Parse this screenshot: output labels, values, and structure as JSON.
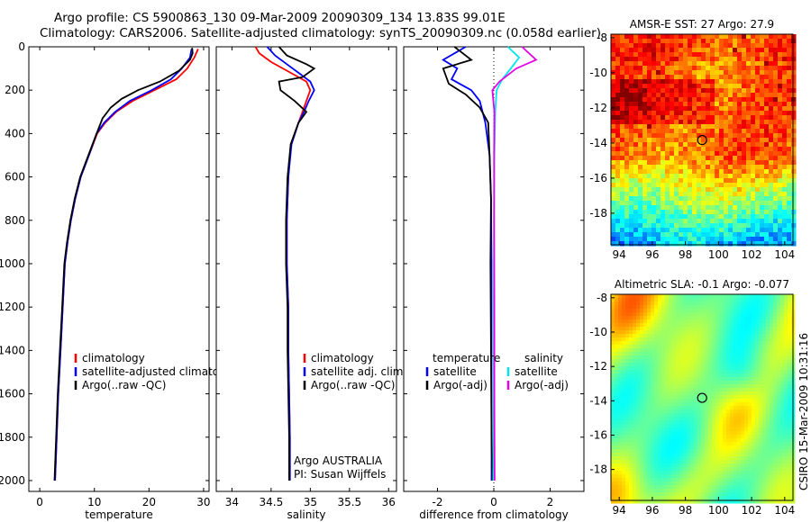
{
  "header": {
    "line1": "Argo profile: CS 5900863_130 09-Mar-2009 20090309_134 13.83S 99.01E",
    "line2": "Climatology: CARS2006. Satellite-adjusted climatology: synTS_20090309.nc (0.058d earlier)"
  },
  "footer": {
    "credit": "CSIRO 15-Mar-2009 10:31:16"
  },
  "colors": {
    "climatology": "#ff0000",
    "satellite": "#0000ff",
    "argo": "#000000",
    "satellite_diff_sal": "#00e5ee",
    "argo_diff_sal": "#e600e6"
  },
  "chart_data": [
    {
      "id": "temperature",
      "type": "line",
      "xlabel": "temperature",
      "ylabel": "",
      "xlim": [
        -2,
        31
      ],
      "ylim": [
        2050,
        0
      ],
      "xticks": [
        0,
        10,
        20,
        30
      ],
      "yticks": [
        0,
        200,
        400,
        600,
        800,
        1000,
        1200,
        1400,
        1600,
        1800,
        2000
      ],
      "legend": {
        "position": "lower-right",
        "entries": [
          "climatology",
          "satellite-adjusted climatology",
          "Argo(..raw -QC)"
        ]
      },
      "series": [
        {
          "name": "climatology",
          "color": "#ff0000",
          "points": [
            [
              29,
              10
            ],
            [
              28.3,
              50
            ],
            [
              27,
              100
            ],
            [
              25,
              150
            ],
            [
              21,
              200
            ],
            [
              17,
              250
            ],
            [
              14,
              300
            ],
            [
              12,
              350
            ],
            [
              10.5,
              400
            ],
            [
              9,
              500
            ],
            [
              7.5,
              600
            ],
            [
              6.5,
              700
            ],
            [
              5.7,
              800
            ],
            [
              5.1,
              900
            ],
            [
              4.6,
              1000
            ],
            [
              4.2,
              1200
            ],
            [
              3.8,
              1400
            ],
            [
              3.4,
              1600
            ],
            [
              3.1,
              1800
            ],
            [
              2.8,
              2000
            ]
          ]
        },
        {
          "name": "satellite-adjusted climatology",
          "color": "#0000ff",
          "points": [
            [
              27.8,
              10
            ],
            [
              27.5,
              50
            ],
            [
              26,
              100
            ],
            [
              24,
              150
            ],
            [
              20.5,
              200
            ],
            [
              16.5,
              250
            ],
            [
              13.8,
              300
            ],
            [
              11.8,
              350
            ],
            [
              10.4,
              400
            ],
            [
              9,
              500
            ],
            [
              7.5,
              600
            ],
            [
              6.5,
              700
            ],
            [
              5.7,
              800
            ],
            [
              5.1,
              900
            ],
            [
              4.6,
              1000
            ],
            [
              4.2,
              1200
            ],
            [
              3.8,
              1400
            ],
            [
              3.4,
              1600
            ],
            [
              3.1,
              1800
            ],
            [
              2.8,
              2000
            ]
          ]
        },
        {
          "name": "Argo(..raw -QC)",
          "color": "#000000",
          "points": [
            [
              27.9,
              5
            ],
            [
              28,
              30
            ],
            [
              27.5,
              60
            ],
            [
              25.5,
              110
            ],
            [
              22,
              160
            ],
            [
              18,
              200
            ],
            [
              15,
              240
            ],
            [
              13,
              280
            ],
            [
              11.5,
              330
            ],
            [
              10.4,
              400
            ],
            [
              8.9,
              500
            ],
            [
              7.4,
              600
            ],
            [
              6.4,
              700
            ],
            [
              5.6,
              800
            ],
            [
              5,
              900
            ],
            [
              4.5,
              1000
            ],
            [
              4.1,
              1200
            ],
            [
              3.7,
              1400
            ],
            [
              3.3,
              1600
            ],
            [
              3,
              1800
            ],
            [
              2.7,
              2000
            ]
          ]
        }
      ]
    },
    {
      "id": "salinity",
      "type": "line",
      "xlabel": "salinity",
      "ylabel": "",
      "xlim": [
        33.8,
        36.1
      ],
      "ylim": [
        2050,
        0
      ],
      "xticks": [
        34,
        34.5,
        35,
        35.5,
        36
      ],
      "xtick_labels": [
        "34",
        "34.5",
        "35",
        "35.5",
        "36"
      ],
      "legend": {
        "position": "lower-right",
        "entries": [
          "climatology",
          "satellite adj. clim.",
          "Argo(..raw -QC)"
        ]
      },
      "annotations": [
        "Argo AUSTRALIA",
        "PI: Susan Wijffels"
      ],
      "series": [
        {
          "name": "climatology",
          "color": "#ff0000",
          "points": [
            [
              34.3,
              0
            ],
            [
              34.35,
              30
            ],
            [
              34.5,
              70
            ],
            [
              34.7,
              110
            ],
            [
              34.95,
              160
            ],
            [
              35.0,
              200
            ],
            [
              34.95,
              250
            ],
            [
              34.9,
              300
            ],
            [
              34.85,
              350
            ],
            [
              34.75,
              450
            ],
            [
              34.72,
              600
            ],
            [
              34.7,
              800
            ],
            [
              34.7,
              1000
            ],
            [
              34.72,
              1200
            ],
            [
              34.72,
              1400
            ],
            [
              34.73,
              1600
            ],
            [
              34.74,
              1800
            ],
            [
              34.74,
              2000
            ]
          ]
        },
        {
          "name": "satellite adj. clim.",
          "color": "#0000ff",
          "points": [
            [
              34.45,
              0
            ],
            [
              34.55,
              40
            ],
            [
              34.7,
              80
            ],
            [
              34.85,
              120
            ],
            [
              35.0,
              160
            ],
            [
              35.05,
              200
            ],
            [
              34.98,
              250
            ],
            [
              34.92,
              300
            ],
            [
              34.85,
              350
            ],
            [
              34.76,
              450
            ],
            [
              34.72,
              600
            ],
            [
              34.7,
              800
            ],
            [
              34.7,
              1000
            ],
            [
              34.72,
              1200
            ],
            [
              34.72,
              1400
            ],
            [
              34.73,
              1600
            ],
            [
              34.74,
              1800
            ],
            [
              34.74,
              2000
            ]
          ]
        },
        {
          "name": "Argo(..raw -QC)",
          "color": "#000000",
          "points": [
            [
              34.6,
              0
            ],
            [
              34.7,
              40
            ],
            [
              34.95,
              80
            ],
            [
              35.05,
              100
            ],
            [
              34.9,
              140
            ],
            [
              34.6,
              160
            ],
            [
              34.62,
              200
            ],
            [
              34.8,
              250
            ],
            [
              34.95,
              300
            ],
            [
              34.85,
              350
            ],
            [
              34.75,
              450
            ],
            [
              34.71,
              600
            ],
            [
              34.69,
              800
            ],
            [
              34.69,
              1000
            ],
            [
              34.71,
              1200
            ],
            [
              34.71,
              1400
            ],
            [
              34.72,
              1600
            ],
            [
              34.73,
              1800
            ],
            [
              34.73,
              2000
            ]
          ]
        }
      ]
    },
    {
      "id": "difference",
      "type": "line",
      "xlabel": "difference from climatology",
      "ylabel": "",
      "xlim": [
        -3.2,
        3.2
      ],
      "ylim": [
        2050,
        0
      ],
      "xticks": [
        -2,
        0,
        2
      ],
      "legend": {
        "position": "lower-center",
        "groups": [
          {
            "heading": "temperature",
            "entries": [
              "satellite",
              "Argo(-adj)"
            ]
          },
          {
            "heading": "salinity",
            "entries": [
              "satellite",
              "Argo(-adj)"
            ]
          }
        ]
      },
      "series": [
        {
          "name": "satellite",
          "group": "temperature",
          "color": "#0000ff",
          "points": [
            [
              -1.0,
              0
            ],
            [
              -1.8,
              60
            ],
            [
              -1.3,
              100
            ],
            [
              -1.5,
              150
            ],
            [
              -0.8,
              200
            ],
            [
              -0.5,
              250
            ],
            [
              -0.3,
              350
            ],
            [
              -0.15,
              500
            ],
            [
              -0.1,
              700
            ],
            [
              -0.08,
              1000
            ],
            [
              -0.08,
              1400
            ],
            [
              -0.08,
              1800
            ],
            [
              -0.08,
              2000
            ]
          ]
        },
        {
          "name": "Argo(-adj)",
          "group": "temperature",
          "color": "#000000",
          "points": [
            [
              -1.4,
              0
            ],
            [
              -0.8,
              60
            ],
            [
              -1.8,
              100
            ],
            [
              -1.6,
              170
            ],
            [
              -1.0,
              220
            ],
            [
              -0.5,
              280
            ],
            [
              -0.2,
              350
            ],
            [
              -0.15,
              500
            ],
            [
              -0.1,
              700
            ],
            [
              -0.12,
              1000
            ],
            [
              -0.1,
              1400
            ],
            [
              -0.08,
              1800
            ],
            [
              -0.05,
              2000
            ]
          ]
        },
        {
          "name": "satellite",
          "group": "salinity",
          "color": "#00e5ee",
          "points": [
            [
              0.5,
              0
            ],
            [
              0.9,
              50
            ],
            [
              0.6,
              100
            ],
            [
              0.3,
              150
            ],
            [
              0.1,
              200
            ],
            [
              0.05,
              300
            ],
            [
              0.02,
              500
            ],
            [
              0.01,
              800
            ],
            [
              0,
              1200
            ],
            [
              0,
              1600
            ],
            [
              -0.02,
              2000
            ]
          ]
        },
        {
          "name": "Argo(-adj)",
          "group": "salinity",
          "color": "#e600e6",
          "points": [
            [
              1.0,
              0
            ],
            [
              1.5,
              60
            ],
            [
              0.8,
              100
            ],
            [
              0.2,
              160
            ],
            [
              -0.05,
              200
            ],
            [
              0.02,
              300
            ],
            [
              0.01,
              500
            ],
            [
              0.01,
              800
            ],
            [
              0.02,
              1200
            ],
            [
              0.02,
              1600
            ],
            [
              0.03,
              2000
            ]
          ]
        }
      ]
    },
    {
      "id": "sst_map",
      "type": "heatmap",
      "title": "AMSR-E SST: 27  Argo: 27.9",
      "xlim": [
        93.5,
        104.5
      ],
      "ylim": [
        -19.8,
        -7.8
      ],
      "xticks": [
        94,
        96,
        98,
        100,
        102,
        104
      ],
      "yticks": [
        -8,
        -10,
        -12,
        -14,
        -16,
        -18
      ],
      "argo_position": {
        "lon": 99.01,
        "lat": -13.83
      }
    },
    {
      "id": "sla_map",
      "type": "heatmap",
      "title": "Altimetric SLA: -0.1  Argo: -0.077",
      "xlim": [
        93.5,
        104.5
      ],
      "ylim": [
        -19.8,
        -7.8
      ],
      "xticks": [
        94,
        96,
        98,
        100,
        102,
        104
      ],
      "yticks": [
        -8,
        -10,
        -12,
        -14,
        -16,
        -18
      ],
      "argo_position": {
        "lon": 99.01,
        "lat": -13.83
      }
    }
  ]
}
